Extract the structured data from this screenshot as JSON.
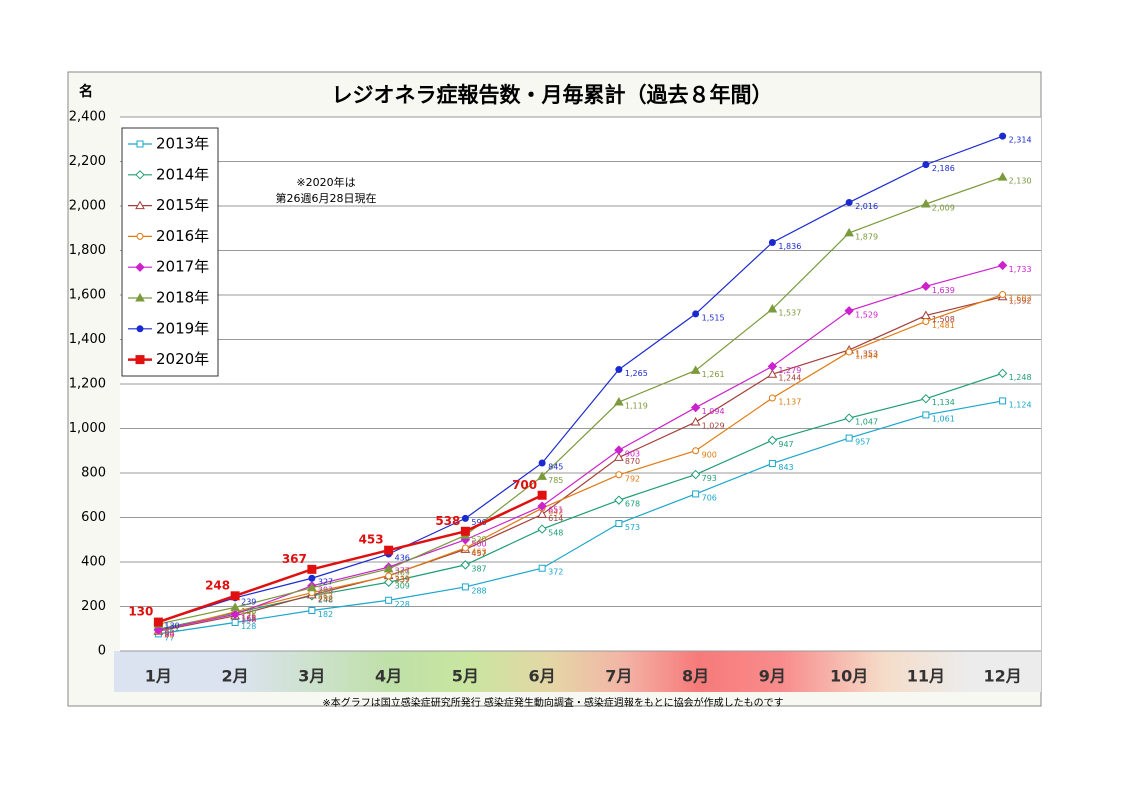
{
  "chart_data": {
    "type": "line",
    "title": "レジオネラ症報告数・月毎累計（過去８年間）",
    "y_label": "名",
    "annotation": [
      "※2020年は",
      "第26週6月28日現在"
    ],
    "footnote": "※本グラフは国立感染症研究所発行 感染症発生動向調査・感染症週報をもとに協会が作成したものです",
    "categories": [
      "1月",
      "2月",
      "3月",
      "4月",
      "5月",
      "6月",
      "7月",
      "8月",
      "9月",
      "10月",
      "11月",
      "12月"
    ],
    "ylim": [
      0,
      2400
    ],
    "yticks": [
      0,
      200,
      400,
      600,
      800,
      {
        "value": 1000,
        "label": "1,000"
      },
      {
        "value": 1200,
        "label": "1,200"
      },
      {
        "value": 1400,
        "label": "1,400"
      },
      {
        "value": 1600,
        "label": "1,600"
      },
      {
        "value": 1800,
        "label": "1,800"
      },
      {
        "value": 2000,
        "label": "2,000"
      },
      {
        "value": 2200,
        "label": "2,200"
      },
      {
        "value": 2400,
        "label": "2,400"
      }
    ],
    "grid": true,
    "legend": "upper left",
    "series": [
      {
        "name": "2013年",
        "color": "#1ba6cc",
        "marker": "square",
        "filled": false,
        "values": [
          77,
          128,
          182,
          228,
          288,
          372,
          573,
          706,
          843,
          957,
          1061,
          1124
        ],
        "value_labels": [
          "77",
          "128",
          "182",
          "228",
          "288",
          "372",
          "573",
          "706",
          "843",
          "957",
          "1,061",
          "1,124"
        ]
      },
      {
        "name": "2014年",
        "color": "#1f9e72",
        "marker": "diamond",
        "filled": false,
        "values": [
          98,
          171,
          248,
          309,
          387,
          548,
          678,
          793,
          947,
          1047,
          1134,
          1248
        ],
        "value_labels": [
          "98",
          "171",
          "248",
          "309",
          "387",
          "548",
          "678",
          "793",
          "947",
          "1,047",
          "1,134",
          "1,248"
        ]
      },
      {
        "name": "2015年",
        "color": "#a3403a",
        "marker": "triangle",
        "filled": false,
        "values": [
          89,
          158,
          252,
          339,
          457,
          614,
          870,
          1029,
          1244,
          1353,
          1508,
          1592
        ],
        "value_labels": [
          "89",
          "158",
          "252",
          "339",
          "457",
          "614",
          "870",
          "1,029",
          "1,244",
          "1,353",
          "1,508",
          "1,592"
        ]
      },
      {
        "name": "2016年",
        "color": "#e07a12",
        "marker": "circle",
        "filled": false,
        "values": [
          90,
          176,
          262,
          337,
          463,
          642,
          792,
          900,
          1137,
          1344,
          1481,
          1602
        ],
        "value_labels": [
          "90",
          "176",
          "262",
          "337",
          "463",
          "642",
          "792",
          "900",
          "1,137",
          "1,344",
          "1,481",
          "1,602"
        ]
      },
      {
        "name": "2017年",
        "color": "#cc22cc",
        "marker": "diamond",
        "filled": true,
        "values": [
          94,
          165,
          293,
          377,
          500,
          651,
          903,
          1094,
          1279,
          1529,
          1639,
          1733
        ],
        "value_labels": [
          "94",
          "165",
          "293",
          "377",
          "500",
          "651",
          "903",
          "1,094",
          "1,279",
          "1,529",
          "1,639",
          "1,733"
        ]
      },
      {
        "name": "2018年",
        "color": "#7a9a3c",
        "marker": "triangle",
        "filled": true,
        "values": [
          121,
          196,
          284,
          369,
          520,
          785,
          1119,
          1261,
          1537,
          1879,
          2009,
          2130
        ],
        "value_labels": [
          "121",
          "196",
          "284",
          "369",
          "520",
          "785",
          "1,119",
          "1,261",
          "1,537",
          "1,879",
          "2,009",
          "2,130"
        ]
      },
      {
        "name": "2019年",
        "color": "#1a2ad0",
        "marker": "circle",
        "filled": true,
        "values": [
          130,
          239,
          327,
          436,
          596,
          845,
          1265,
          1515,
          1836,
          2016,
          2186,
          2314
        ],
        "value_labels": [
          "130",
          "239",
          "327",
          "436",
          "596",
          "845",
          "1,265",
          "1,515",
          "1,836",
          "2,016",
          "2,186",
          "2,314"
        ]
      },
      {
        "name": "2020年",
        "color": "#e01010",
        "marker": "square",
        "filled": true,
        "values": [
          130,
          248,
          367,
          453,
          538,
          700,
          null,
          null,
          null,
          null,
          null,
          null
        ]
      }
    ]
  }
}
